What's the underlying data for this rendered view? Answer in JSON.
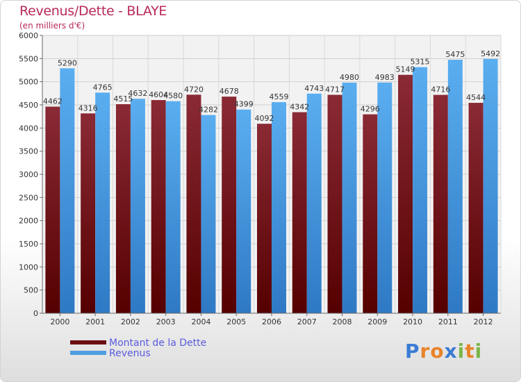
{
  "title": "Revenus/Dette - BLAYE",
  "subtitle": "(en milliers d'€)",
  "chart_data": {
    "type": "bar",
    "categories": [
      "2000",
      "2001",
      "2002",
      "2003",
      "2004",
      "2005",
      "2006",
      "2007",
      "2008",
      "2009",
      "2010",
      "2011",
      "2012"
    ],
    "series": [
      {
        "name": "Montant de la Dette",
        "values": [
          4462,
          4316,
          4515,
          4604,
          4720,
          4678,
          4092,
          4342,
          4717,
          4296,
          5149,
          4716,
          4544
        ],
        "color": "#7a1f28"
      },
      {
        "name": "Revenus",
        "values": [
          5290,
          4765,
          4632,
          4580,
          4282,
          4399,
          4559,
          4743,
          4980,
          4983,
          5315,
          5475,
          5492
        ],
        "color": "#4f9fe0"
      }
    ],
    "yticks": [
      "0",
      "500",
      "1000",
      "1500",
      "2000",
      "2500",
      "3000",
      "3500",
      "4000",
      "4500",
      "5000",
      "5500",
      "6000"
    ],
    "ylim": [
      0,
      6000
    ],
    "grid": true,
    "legend": "bottom-left"
  },
  "legend": {
    "debt_label": "Montant de la Dette",
    "revenue_label": "Revenus"
  },
  "logo": {
    "text": "Proxiti",
    "letters": [
      "P",
      "r",
      "o",
      "x",
      "i",
      "t",
      "i"
    ],
    "colors": [
      "#3a7bd5",
      "#e8832a",
      "#e8832a",
      "#3a7bd5",
      "#7ab648",
      "#e8832a",
      "#7ab648"
    ]
  }
}
